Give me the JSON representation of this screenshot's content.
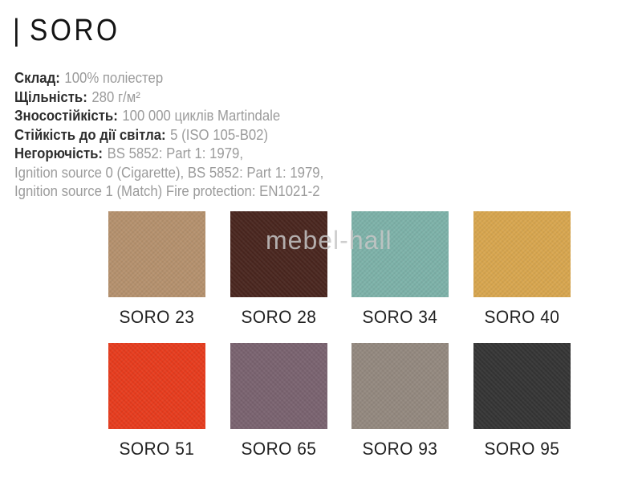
{
  "page": {
    "title_prefix": "|",
    "title": "SORO",
    "watermark": "mebel-hall",
    "watermark_color": "#c6c6c6",
    "background_color": "#ffffff"
  },
  "specs": [
    {
      "label": "Склад:",
      "value": "100% поліестер"
    },
    {
      "label": "Щільність:",
      "value": "280 г/м²"
    },
    {
      "label": "Зносостійкість:",
      "value": "100 000 циклів Martindale"
    },
    {
      "label": "Стійкість до дії світла:",
      "value": "5 (ISO 105-B02)"
    },
    {
      "label": "Негорючість:",
      "value": "BS 5852: Part 1: 1979,"
    },
    {
      "label": "",
      "value": "Ignition source 0 (Cigarette), BS 5852: Part 1: 1979,"
    },
    {
      "label": "",
      "value": "Ignition source 1 (Match) Fire protection: EN1021-2"
    }
  ],
  "swatches": [
    {
      "name": "SORO 23",
      "color": "#b5916e"
    },
    {
      "name": "SORO 28",
      "color": "#4a261f"
    },
    {
      "name": "SORO 34",
      "color": "#7db2a9"
    },
    {
      "name": "SORO 40",
      "color": "#d8a64f"
    },
    {
      "name": "SORO 51",
      "color": "#e73c1e"
    },
    {
      "name": "SORO 65",
      "color": "#7a6370"
    },
    {
      "name": "SORO 93",
      "color": "#94897f"
    },
    {
      "name": "SORO 95",
      "color": "#353535"
    }
  ]
}
